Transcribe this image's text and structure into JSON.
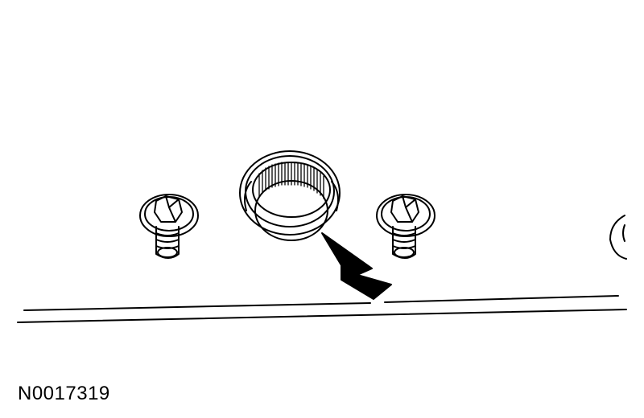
{
  "figure": {
    "id_label": "N0017319"
  },
  "colors": {
    "line": "#000000",
    "background": "#ffffff"
  },
  "icons": {
    "plug": "knurled-plug-icon",
    "stud": "hex-stud-icon",
    "arrow": "pointer-arrow-icon"
  }
}
